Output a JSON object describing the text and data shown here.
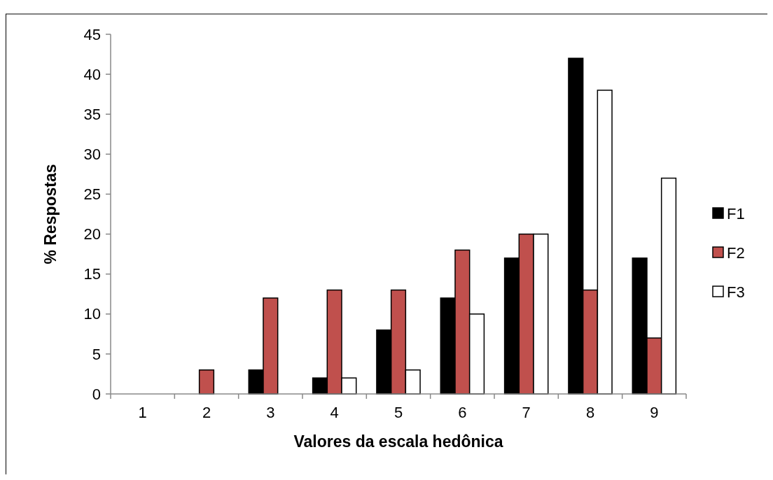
{
  "chart_data": {
    "type": "bar",
    "xlabel": "Valores da escala hedônica",
    "ylabel": "% Respostas",
    "categories": [
      "1",
      "2",
      "3",
      "4",
      "5",
      "6",
      "7",
      "8",
      "9"
    ],
    "series": [
      {
        "name": "F1",
        "color": "#000000",
        "values": [
          0,
          0,
          3,
          2,
          8,
          12,
          17,
          42,
          17
        ]
      },
      {
        "name": "F2",
        "color": "#c0504d",
        "values": [
          0,
          3,
          12,
          13,
          13,
          18,
          20,
          13,
          7
        ]
      },
      {
        "name": "F3",
        "color": "#ffffff",
        "values": [
          0,
          0,
          0,
          2,
          3,
          10,
          20,
          38,
          27
        ]
      }
    ],
    "ylim": [
      0,
      45
    ],
    "yticks": [
      0,
      5,
      10,
      15,
      20,
      25,
      30,
      35,
      40,
      45
    ],
    "legend": "right",
    "grid": false
  }
}
